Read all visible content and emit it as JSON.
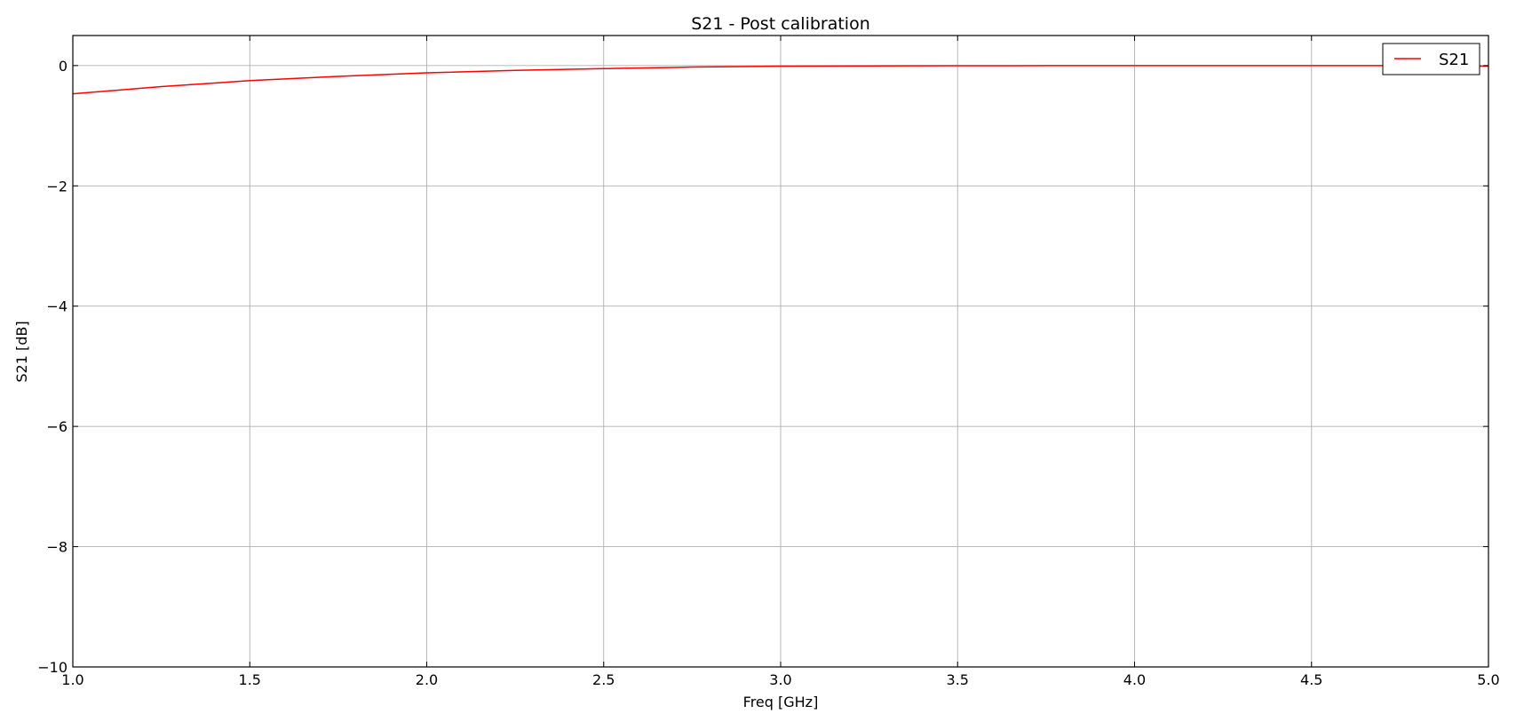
{
  "chart_data": {
    "type": "line",
    "title": "S21 - Post calibration",
    "xlabel": "Freq [GHz]",
    "ylabel": "S21 [dB]",
    "xlim": [
      1.0,
      5.0
    ],
    "ylim": [
      -10,
      0.5
    ],
    "xticks": [
      1.0,
      1.5,
      2.0,
      2.5,
      3.0,
      3.5,
      4.0,
      4.5,
      5.0
    ],
    "xtick_labels": [
      "1.0",
      "1.5",
      "2.0",
      "2.5",
      "3.0",
      "3.5",
      "4.0",
      "4.5",
      "5.0"
    ],
    "yticks": [
      0,
      -2,
      -4,
      -6,
      -8,
      -10
    ],
    "ytick_labels": [
      "0",
      "−2",
      "−4",
      "−6",
      "−8",
      "−10"
    ],
    "grid": true,
    "legend_position": "top-right",
    "series": [
      {
        "name": "S21",
        "color": "#ff0000",
        "x": [
          1.0,
          1.25,
          1.5,
          1.75,
          2.0,
          2.25,
          2.5,
          2.75,
          3.0,
          3.25,
          3.5,
          3.75,
          4.0,
          4.25,
          4.5,
          4.75,
          5.0
        ],
        "y": [
          -0.47,
          -0.35,
          -0.25,
          -0.18,
          -0.12,
          -0.08,
          -0.05,
          -0.025,
          -0.01,
          -0.005,
          -0.002,
          -0.001,
          0.0,
          0.0,
          0.0,
          0.0,
          -0.01
        ]
      }
    ]
  }
}
